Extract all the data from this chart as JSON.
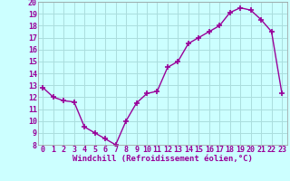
{
  "x": [
    0,
    1,
    2,
    3,
    4,
    5,
    6,
    7,
    8,
    9,
    10,
    11,
    12,
    13,
    14,
    15,
    16,
    17,
    18,
    19,
    20,
    21,
    22,
    23
  ],
  "y": [
    12.8,
    12.0,
    11.7,
    11.6,
    9.5,
    9.0,
    8.5,
    8.0,
    10.0,
    11.5,
    12.3,
    12.5,
    14.5,
    15.0,
    16.5,
    17.0,
    17.5,
    18.0,
    19.1,
    19.5,
    19.3,
    18.5,
    17.5,
    12.3
  ],
  "line_color": "#990099",
  "marker": "+",
  "marker_size": 4,
  "marker_linewidth": 1.2,
  "xlabel": "Windchill (Refroidissement éolien,°C)",
  "xlim": [
    -0.5,
    23.5
  ],
  "ylim": [
    8,
    20
  ],
  "yticks": [
    8,
    9,
    10,
    11,
    12,
    13,
    14,
    15,
    16,
    17,
    18,
    19,
    20
  ],
  "xticks": [
    0,
    1,
    2,
    3,
    4,
    5,
    6,
    7,
    8,
    9,
    10,
    11,
    12,
    13,
    14,
    15,
    16,
    17,
    18,
    19,
    20,
    21,
    22,
    23
  ],
  "background_color": "#ccffff",
  "grid_color": "#aadddd",
  "tick_label_color": "#990099",
  "xlabel_color": "#990099",
  "xlabel_fontsize": 6.5,
  "tick_fontsize": 6.0,
  "linewidth": 1.0
}
